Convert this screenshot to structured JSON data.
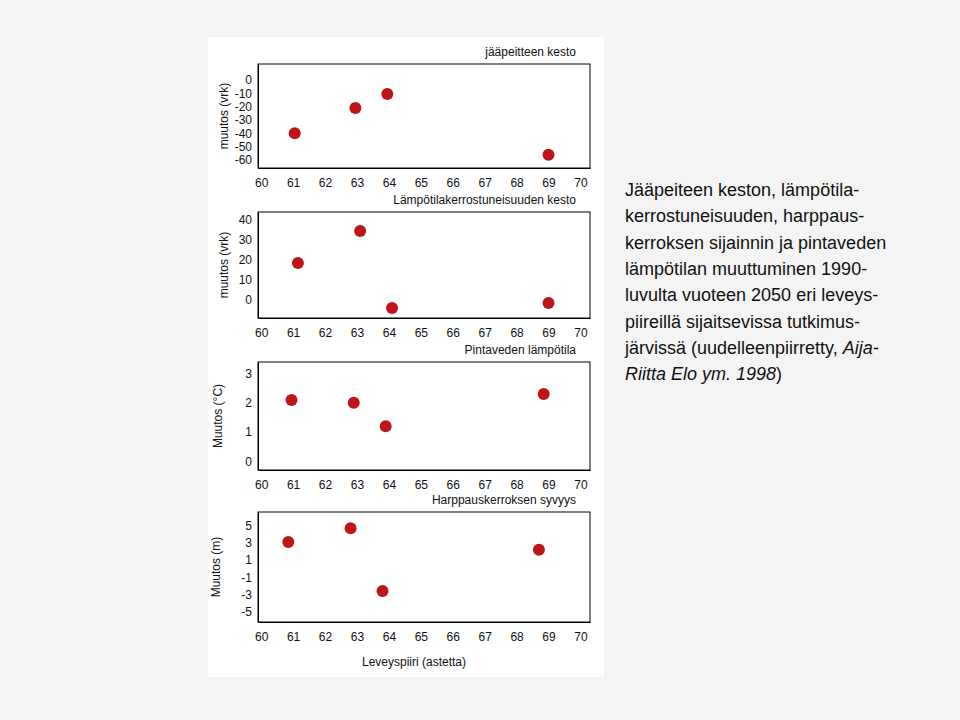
{
  "chart_data": [
    {
      "type": "scatter",
      "title": "jääpeitteen kesto",
      "y_label": "muutos (vrk)",
      "x": [
        61.05,
        62.95,
        63.95,
        69.0
      ],
      "values": [
        -40,
        -21,
        -10.5,
        -56
      ],
      "color": "#c0141c",
      "marker": "circle",
      "xlim": [
        59.9,
        70.3
      ],
      "xticks": [
        60,
        61,
        62,
        63,
        64,
        65,
        66,
        67,
        68,
        69,
        70
      ],
      "ylim": [
        -66,
        12
      ],
      "yticks": [
        0,
        -10,
        -20,
        -30,
        -40,
        -50,
        -60
      ]
    },
    {
      "type": "scatter",
      "title": "Lämpötilakerrostuneisuuden kesto",
      "y_label": "muutos (vrk)",
      "x": [
        61.15,
        63.1,
        64.1,
        69.0
      ],
      "values": [
        18.5,
        34.5,
        -4,
        -1.5
      ],
      "color": "#c0141c",
      "marker": "circle",
      "xlim": [
        59.9,
        70.3
      ],
      "xticks": [
        60,
        61,
        62,
        63,
        64,
        65,
        66,
        67,
        68,
        69,
        70
      ],
      "ylim": [
        -9,
        44
      ],
      "yticks": [
        0,
        10,
        20,
        30,
        40
      ]
    },
    {
      "type": "scatter",
      "title": "Pintaveden lämpötila",
      "y_label": "Muutos (°C)",
      "x": [
        60.95,
        62.9,
        63.9,
        68.85
      ],
      "values": [
        2.1,
        2.0,
        1.2,
        2.3
      ],
      "color": "#c0141c",
      "marker": "circle",
      "xlim": [
        59.9,
        70.3
      ],
      "xticks": [
        60,
        61,
        62,
        63,
        64,
        65,
        66,
        67,
        68,
        69,
        70
      ],
      "ylim": [
        -0.3,
        3.4
      ],
      "yticks": [
        0,
        1,
        2,
        3
      ]
    },
    {
      "type": "scatter",
      "title": "Harppauskerroksen syvyys",
      "y_label": "Muutos (m)",
      "x_label": "Leveyspiiri (astetta)",
      "x": [
        60.85,
        62.8,
        63.8,
        68.7
      ],
      "values": [
        3.1,
        4.7,
        -2.6,
        2.2
      ],
      "color": "#c0141c",
      "marker": "circle",
      "xlim": [
        59.9,
        70.3
      ],
      "xticks": [
        60,
        61,
        62,
        63,
        64,
        65,
        66,
        67,
        68,
        69,
        70
      ],
      "ylim": [
        -6.2,
        6.6
      ],
      "yticks": [
        5,
        3,
        1,
        -1,
        -3,
        -5
      ]
    }
  ],
  "caption": [
    [
      {
        "text": "Jääpeiteen keston, lämpötila-"
      }
    ],
    [
      {
        "text": "kerrostuneisuuden, harppaus-"
      }
    ],
    [
      {
        "text": "kerroksen sijainnin ja pintaveden"
      }
    ],
    [
      {
        "text": "lämpötilan muuttuminen 1990-"
      }
    ],
    [
      {
        "text": "luvulta vuoteen 2050 eri leveys-"
      }
    ],
    [
      {
        "text": "piireillä sijaitsevissa tutkimus-"
      }
    ],
    [
      {
        "text": "järvissä (uudelleenpiirretty, "
      },
      {
        "text": "Aija-",
        "style": "italic"
      }
    ],
    [
      {
        "text": "Riitta Elo ym. 1998",
        "style": "italic"
      },
      {
        "text": ")"
      }
    ]
  ]
}
